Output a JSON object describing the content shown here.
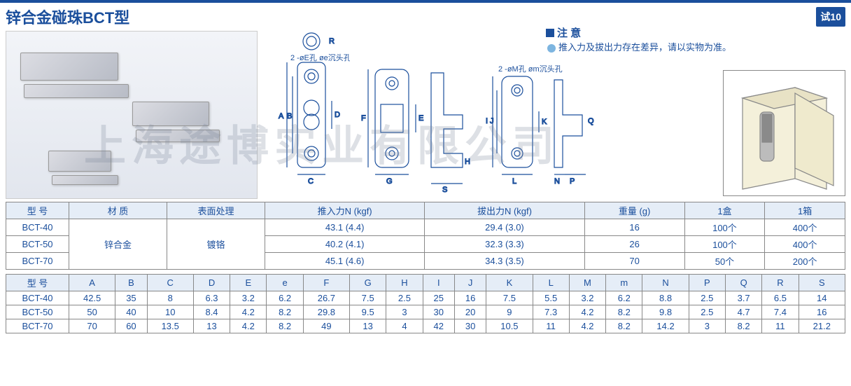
{
  "title": "锌合金碰珠BCT型",
  "badge": "试10",
  "notice": {
    "heading": "注 意",
    "text": "推入力及拔出力存在差异，请以实物为准。"
  },
  "diagram_labels": {
    "e_hole": "2 -øE孔 øe沉头孔",
    "m_hole": "2 -øM孔 øm沉头孔",
    "dims": [
      "A",
      "B",
      "C",
      "D",
      "E",
      "e",
      "F",
      "G",
      "H",
      "I",
      "J",
      "K",
      "L",
      "M",
      "m",
      "N",
      "P",
      "Q",
      "R",
      "S"
    ]
  },
  "table1": {
    "headers": [
      "型 号",
      "材 质",
      "表面处理",
      "推入力N (kgf)",
      "拔出力N (kgf)",
      "重量 (g)",
      "1盒",
      "1箱"
    ],
    "rows": [
      {
        "model": "BCT-40",
        "push": "43.1 (4.4)",
        "pull": "29.4 (3.0)",
        "weight": "16",
        "box": "100个",
        "carton": "400个"
      },
      {
        "model": "BCT-50",
        "push": "40.2 (4.1)",
        "pull": "32.3 (3.3)",
        "weight": "26",
        "box": "100个",
        "carton": "400个"
      },
      {
        "model": "BCT-70",
        "push": "45.1 (4.6)",
        "pull": "34.3 (3.5)",
        "weight": "70",
        "box": "50个",
        "carton": "200个"
      }
    ],
    "material": "锌合金",
    "finish": "镀铬"
  },
  "table2": {
    "headers": [
      "型 号",
      "A",
      "B",
      "C",
      "D",
      "E",
      "e",
      "F",
      "G",
      "H",
      "I",
      "J",
      "K",
      "L",
      "M",
      "m",
      "N",
      "P",
      "Q",
      "R",
      "S"
    ],
    "rows": [
      {
        "model": "BCT-40",
        "vals": [
          "42.5",
          "35",
          "8",
          "6.3",
          "3.2",
          "6.2",
          "26.7",
          "7.5",
          "2.5",
          "25",
          "16",
          "7.5",
          "5.5",
          "3.2",
          "6.2",
          "8.8",
          "2.5",
          "3.7",
          "6.5",
          "14"
        ]
      },
      {
        "model": "BCT-50",
        "vals": [
          "50",
          "40",
          "10",
          "8.4",
          "4.2",
          "8.2",
          "29.8",
          "9.5",
          "3",
          "30",
          "20",
          "9",
          "7.3",
          "4.2",
          "8.2",
          "9.8",
          "2.5",
          "4.7",
          "7.4",
          "16"
        ]
      },
      {
        "model": "BCT-70",
        "vals": [
          "70",
          "60",
          "13.5",
          "13",
          "4.2",
          "8.2",
          "49",
          "13",
          "4",
          "42",
          "30",
          "10.5",
          "11",
          "4.2",
          "8.2",
          "14.2",
          "3",
          "8.2",
          "11",
          "21.2"
        ]
      }
    ]
  },
  "watermark": "上海途博实业有限公司",
  "colors": {
    "primary": "#1b4f9c",
    "header_bg": "#e5edf7",
    "border": "#888888"
  }
}
